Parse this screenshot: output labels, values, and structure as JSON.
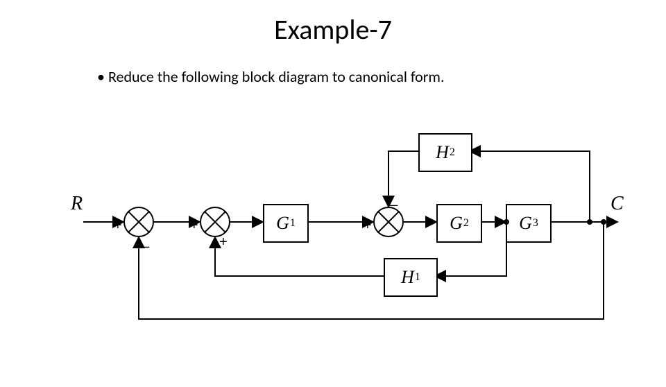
{
  "title": "Example-7",
  "bullet": "Reduce the following block diagram to canonical form.",
  "labels": {
    "input": "R",
    "output": "C"
  },
  "blocks": {
    "G1": {
      "sym": "G",
      "sub": "1"
    },
    "G2": {
      "sym": "G",
      "sub": "2"
    },
    "G3": {
      "sym": "G",
      "sub": "3"
    },
    "H1": {
      "sym": "H",
      "sub": "1"
    },
    "H2": {
      "sym": "H",
      "sub": "2"
    }
  },
  "signs": {
    "s1_left": "+",
    "s1_bottom": "_",
    "s2_left": "+",
    "s2_bottom": "+",
    "s3_left": "+",
    "s3_top": "_"
  },
  "layout": {
    "yMain": 320,
    "yTop": 218,
    "yBot": 398,
    "yOuter": 460,
    "sumR": 22,
    "blkW": 62,
    "blkH": 52,
    "sum1x": 200,
    "sum2x": 310,
    "sum3x": 560,
    "G1x": 410,
    "G2x": 660,
    "G3x": 760,
    "H2x": 640,
    "H1x": 590,
    "nodeAx": 730,
    "nodeBx": 850,
    "nodeCx": 870,
    "inStartX": 120,
    "outEndX": 890
  },
  "style": {
    "stroke": "#000000",
    "strokeWidth": 2,
    "arrowSize": 9,
    "background": "#ffffff"
  }
}
